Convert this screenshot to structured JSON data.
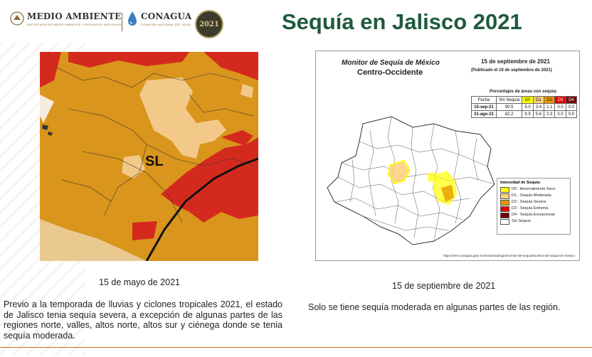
{
  "header": {
    "logo_medio_ambiente": "MEDIO AMBIENTE",
    "logo_medio_ambiente_sub": "SECRETARÍA DE MEDIO AMBIENTE Y RECURSOS NATURALES",
    "logo_conagua": "CONAGUA",
    "logo_conagua_sub": "COMISIÓN NACIONAL DEL AGUA",
    "seal_text": "2021",
    "title": "Sequía en Jalisco 2021"
  },
  "left_map": {
    "label": "SL",
    "caption": "15 de mayo de 2021",
    "colors": {
      "d2": "#d9951c",
      "d3": "#d42a1e",
      "d1": "#f3c98a"
    }
  },
  "right_map": {
    "title_line1": "Monitor de Sequía de México",
    "title_line2": "Centro-Occidente",
    "date": "15 de septiembre de 2021",
    "published": "(Publicado el 19 de septiembre de 2021)",
    "pct_title": "Porcentajes de áreas con sequía:",
    "table_headers": [
      "Fecha",
      "Sin Sequía",
      "D0",
      "D1",
      "D2",
      "D3",
      "D4"
    ],
    "table_rows": [
      [
        "15-sep-21",
        "90.5",
        "5.0",
        "3.4",
        "1.1",
        "0.0",
        "0.0"
      ],
      [
        "31-ago-21",
        "82.2",
        "9.9",
        "5.6",
        "2.3",
        "0.0",
        "0.0"
      ]
    ],
    "legend_title": "Intensidad de Sequía:",
    "legend": [
      {
        "label": "D0 - Anormalmente Seco",
        "color": "#ffff00"
      },
      {
        "label": "D1 - Sequía Moderada",
        "color": "#fcd37f"
      },
      {
        "label": "D2 - Sequía Severa",
        "color": "#e69800"
      },
      {
        "label": "D3 - Sequía Extrema",
        "color": "#e60000"
      },
      {
        "label": "D4 - Sequía Excepcional",
        "color": "#730000"
      },
      {
        "label": "Sin Sequía",
        "color": "#ffffff"
      }
    ],
    "url": "https://smn.conagua.gob.mx/es/climatologia/monitor-de-sequia/monitor-de-sequia-en-mexico",
    "caption": "15 de septiembre de 2021"
  },
  "text": {
    "left_paragraph": "Previo a la temporada de lluvias y ciclones tropicales 2021, el estado de Jalisco tenia sequía severa, a excepción de algunas partes de las regiones norte, valles, altos norte, altos sur y ciénega donde se tenia sequía moderada.",
    "right_paragraph": "Solo se tiene sequía moderada en algunas partes de las región."
  },
  "colors": {
    "title": "#1f5a3c",
    "accent": "#c8702c"
  }
}
